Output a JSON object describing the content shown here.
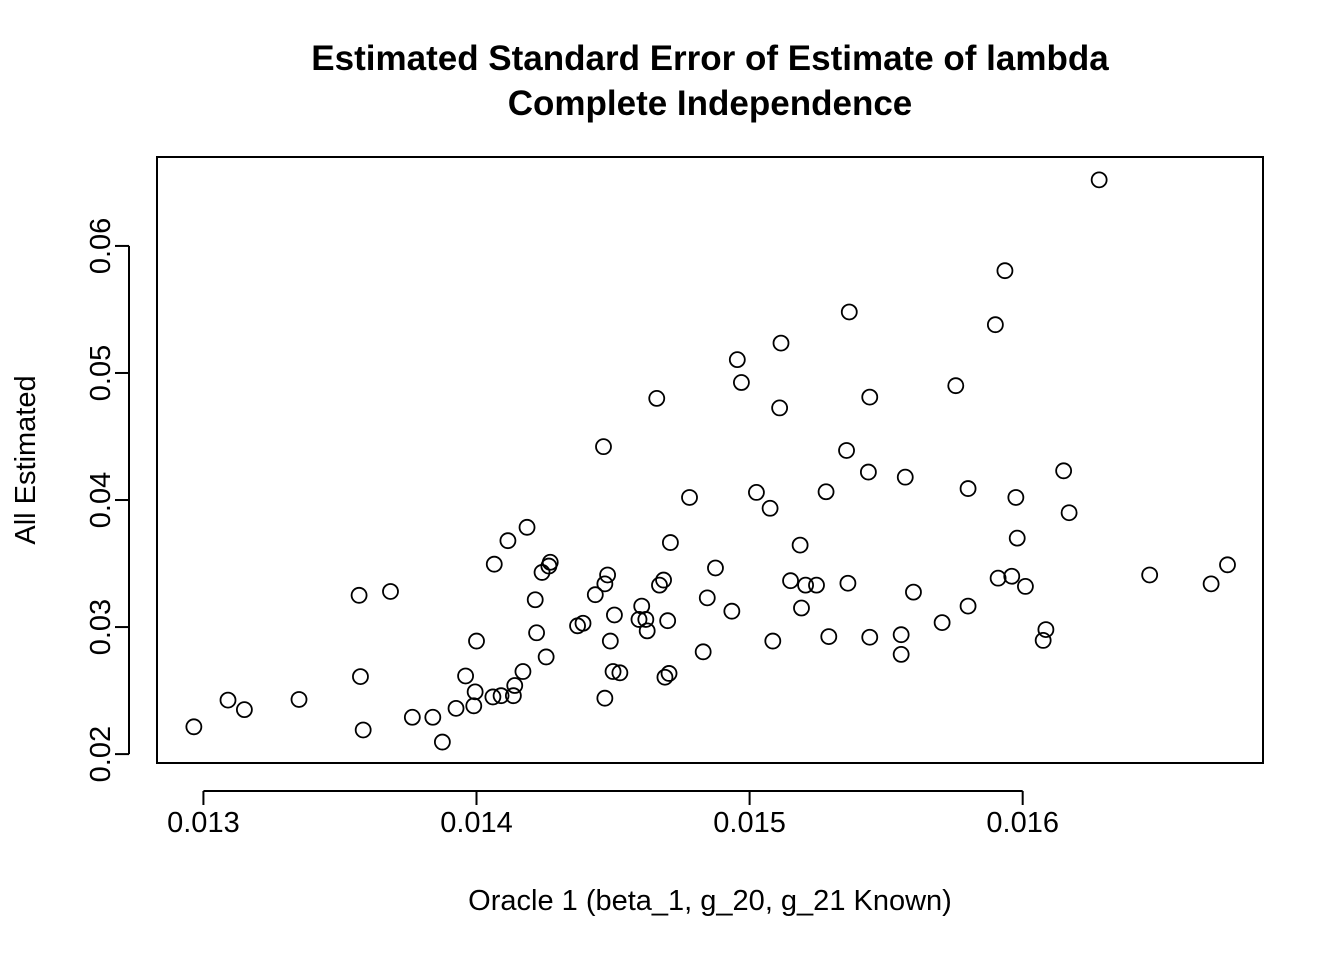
{
  "chart_data": {
    "type": "scatter",
    "title": "Estimated Standard Error of Estimate of lambda",
    "subtitle": "Complete Independence",
    "xlabel": "Oracle 1 (beta_1, g_20, g_21 Known)",
    "ylabel": "All Estimated",
    "xlim": [
      0.01283,
      0.01688
    ],
    "ylim": [
      0.0193,
      0.067
    ],
    "xticks": [
      0.013,
      0.014,
      0.015,
      0.016
    ],
    "xtick_labels": [
      "0.013",
      "0.014",
      "0.015",
      "0.016"
    ],
    "yticks": [
      0.02,
      0.03,
      0.04,
      0.05,
      0.06
    ],
    "ytick_labels": [
      "0.02",
      "0.03",
      "0.04",
      "0.05",
      "0.06"
    ],
    "grid": false,
    "points": [
      [
        0.012965,
        0.02215
      ],
      [
        0.01309,
        0.02425
      ],
      [
        0.01315,
        0.0235
      ],
      [
        0.01335,
        0.0243
      ],
      [
        0.01357,
        0.0325
      ],
      [
        0.013575,
        0.0261
      ],
      [
        0.013585,
        0.0219
      ],
      [
        0.013685,
        0.0328
      ],
      [
        0.013765,
        0.0229
      ],
      [
        0.01384,
        0.0229
      ],
      [
        0.013875,
        0.02095
      ],
      [
        0.013925,
        0.0236
      ],
      [
        0.01396,
        0.02615
      ],
      [
        0.01399,
        0.0238
      ],
      [
        0.013995,
        0.0249
      ],
      [
        0.014,
        0.0289
      ],
      [
        0.01406,
        0.0245
      ],
      [
        0.014065,
        0.03495
      ],
      [
        0.01409,
        0.0246
      ],
      [
        0.014115,
        0.0368
      ],
      [
        0.014135,
        0.0246
      ],
      [
        0.01414,
        0.0254
      ],
      [
        0.01417,
        0.0265
      ],
      [
        0.014185,
        0.03785
      ],
      [
        0.014215,
        0.03215
      ],
      [
        0.01422,
        0.02955
      ],
      [
        0.01424,
        0.0343
      ],
      [
        0.014255,
        0.02765
      ],
      [
        0.014265,
        0.0348
      ],
      [
        0.01427,
        0.0351
      ],
      [
        0.01437,
        0.0301
      ],
      [
        0.01439,
        0.0303
      ],
      [
        0.014435,
        0.03255
      ],
      [
        0.014465,
        0.0442
      ],
      [
        0.01447,
        0.0334
      ],
      [
        0.01447,
        0.0244
      ],
      [
        0.01448,
        0.0341
      ],
      [
        0.01449,
        0.0289
      ],
      [
        0.0145,
        0.0265
      ],
      [
        0.014505,
        0.03095
      ],
      [
        0.014525,
        0.0264
      ],
      [
        0.014595,
        0.0306
      ],
      [
        0.014605,
        0.03165
      ],
      [
        0.01462,
        0.0306
      ],
      [
        0.014625,
        0.0297
      ],
      [
        0.01466,
        0.048
      ],
      [
        0.01467,
        0.0333
      ],
      [
        0.014685,
        0.0337
      ],
      [
        0.01469,
        0.02605
      ],
      [
        0.0147,
        0.0305
      ],
      [
        0.014705,
        0.02635
      ],
      [
        0.01471,
        0.03665
      ],
      [
        0.01478,
        0.0402
      ],
      [
        0.01483,
        0.02805
      ],
      [
        0.014845,
        0.0323
      ],
      [
        0.014875,
        0.03465
      ],
      [
        0.014935,
        0.03125
      ],
      [
        0.014955,
        0.05105
      ],
      [
        0.01497,
        0.04925
      ],
      [
        0.015025,
        0.0406
      ],
      [
        0.015075,
        0.03935
      ],
      [
        0.015085,
        0.0289
      ],
      [
        0.01511,
        0.04725
      ],
      [
        0.015115,
        0.05235
      ],
      [
        0.01515,
        0.03365
      ],
      [
        0.015185,
        0.03645
      ],
      [
        0.01519,
        0.0315
      ],
      [
        0.015205,
        0.0333
      ],
      [
        0.015245,
        0.0333
      ],
      [
        0.01528,
        0.04065
      ],
      [
        0.01529,
        0.02925
      ],
      [
        0.015355,
        0.0439
      ],
      [
        0.01536,
        0.03345
      ],
      [
        0.015365,
        0.0548
      ],
      [
        0.015435,
        0.0422
      ],
      [
        0.01544,
        0.0292
      ],
      [
        0.01544,
        0.0481
      ],
      [
        0.015555,
        0.0294
      ],
      [
        0.015555,
        0.02785
      ],
      [
        0.01557,
        0.0418
      ],
      [
        0.0156,
        0.03275
      ],
      [
        0.015705,
        0.03035
      ],
      [
        0.015755,
        0.049
      ],
      [
        0.0158,
        0.0409
      ],
      [
        0.0158,
        0.03165
      ],
      [
        0.0159,
        0.0538
      ],
      [
        0.01591,
        0.03385
      ],
      [
        0.015935,
        0.05805
      ],
      [
        0.01596,
        0.034
      ],
      [
        0.015975,
        0.0402
      ],
      [
        0.01598,
        0.037
      ],
      [
        0.01601,
        0.0332
      ],
      [
        0.016075,
        0.02895
      ],
      [
        0.016085,
        0.0298
      ],
      [
        0.01615,
        0.0423
      ],
      [
        0.01617,
        0.039
      ],
      [
        0.01628,
        0.0652
      ],
      [
        0.016465,
        0.0341
      ],
      [
        0.01669,
        0.0334
      ],
      [
        0.01675,
        0.0349
      ]
    ]
  }
}
